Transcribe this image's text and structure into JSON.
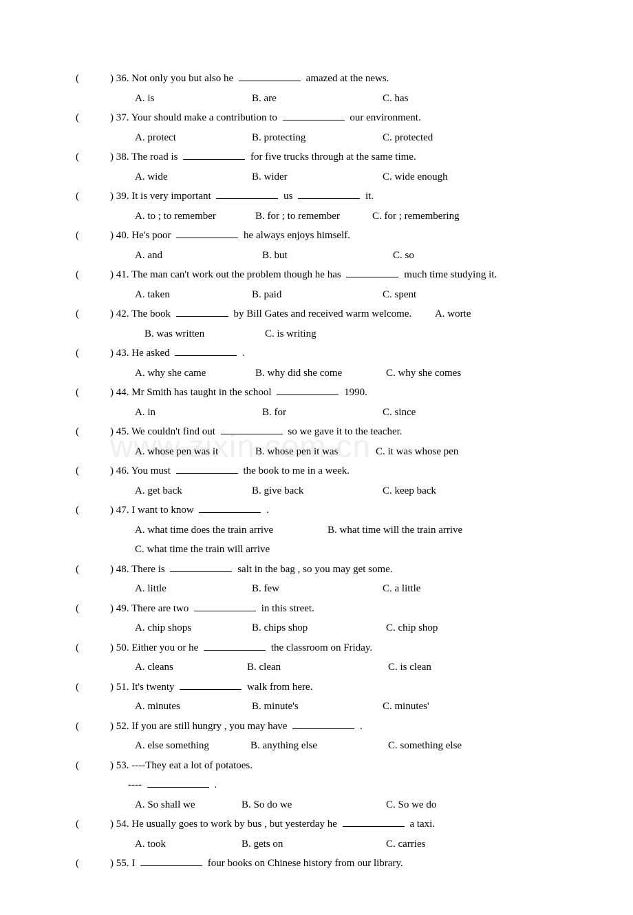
{
  "watermark": "www.zixin.com.cn",
  "questions": [
    {
      "n": "36",
      "q_pre": ") 36. Not only you but also he ",
      "q_post": " amazed at the news.",
      "a": "A. is",
      "b": "B. are",
      "c": "C. has",
      "aw": 170,
      "bw": 190
    },
    {
      "n": "37",
      "q_pre": ") 37. Your should make a contribution to ",
      "q_post": " our environment.",
      "a": "A. protect",
      "b": "B. protecting",
      "c": "C. protected",
      "aw": 170,
      "bw": 190
    },
    {
      "n": "38",
      "q_pre": ") 38. The road is ",
      "q_post": " for five trucks through at the same time.",
      "a": "A. wide",
      "b": "B. wider",
      "c": "C. wide enough",
      "aw": 170,
      "bw": 190
    },
    {
      "n": "39",
      "q_pre": ") 39. It is very important ",
      "q_mid": " us ",
      "q_post": " it.",
      "two_blanks": true,
      "a": "A. to ; to remember",
      "b": "B. for ; to remember",
      "c": "C. for ; remembering",
      "aw": 175,
      "bw": 170
    },
    {
      "n": "40",
      "q_pre": ") 40. He's poor ",
      "q_post": " he always enjoys himself.",
      "a": "A. and",
      "b": "B. but",
      "c": "C. so",
      "aw": 185,
      "bw": 190
    },
    {
      "n": "41",
      "q_pre": ") 41. The man can't work out the problem though he has ",
      "q_post": " much time studying it.",
      "a": "A. taken",
      "b": "B. paid",
      "c": "C. spent",
      "aw": 170,
      "bw": 190,
      "blank_sm": true
    },
    {
      "n": "42",
      "q_pre": ") 42. The book ",
      "q_post": " by Bill Gates and received warm welcome.",
      "a": "A. worte",
      "b": "B. was written",
      "c": "C. is writing",
      "inline_a": true,
      "bw": 175,
      "blank_sm": true
    },
    {
      "n": "43",
      "q_pre": ") 43. He asked ",
      "q_post": " .",
      "a": "A. why she came",
      "b": "B. why did she come",
      "c": "C. why she comes",
      "aw": 175,
      "bw": 190
    },
    {
      "n": "44",
      "q_pre": ") 44. Mr Smith has taught in the school ",
      "q_post": " 1990.",
      "a": "A. in",
      "b": "B. for",
      "c": "C. since",
      "aw": 185,
      "bw": 175
    },
    {
      "n": "45",
      "q_pre": ") 45. We couldn't find out ",
      "q_post": " so we gave it to the teacher.",
      "a": "A. whose pen was it",
      "b": "B. whose pen it was",
      "c": "C. it was whose pen",
      "aw": 175,
      "bw": 175
    },
    {
      "n": "46",
      "q_pre": ") 46. You must ",
      "q_post": " the book to me in a week.",
      "a": "A. get back",
      "b": "B. give back",
      "c": "C. keep back",
      "aw": 170,
      "bw": 190
    },
    {
      "n": "47",
      "q_pre": ") 47. I want to know ",
      "q_post": " .",
      "a": "A. what time does the train arrive",
      "b": "B. what time will the train arrive",
      "c": "C. what time the train will arrive",
      "two_line": true,
      "aw": 280
    },
    {
      "n": "48",
      "q_pre": ") 48. There is ",
      "q_post": " salt in the bag , so you may get some.",
      "a": "A. little",
      "b": "B. few",
      "c": "C. a little",
      "aw": 170,
      "bw": 190
    },
    {
      "n": "49",
      "q_pre": ") 49. There are two ",
      "q_post": " in this street.",
      "a": "A. chip shops",
      "b": "B. chips shop",
      "c": "C. chip shop",
      "aw": 170,
      "bw": 195
    },
    {
      "n": "50",
      "q_pre": ") 50. Either you or he ",
      "q_post": " the classroom on Friday.",
      "a": "A. cleans",
      "b": "B. clean",
      "c": "C. is clean",
      "aw": 163,
      "bw": 205
    },
    {
      "n": "51",
      "q_pre": ") 51. It's twenty ",
      "q_post": " walk from here.",
      "a": "A. minutes",
      "b": "B. minute's",
      "c": "C. minutes'",
      "aw": 170,
      "bw": 190
    },
    {
      "n": "52",
      "q_pre": ") 52. If you are still hungry , you may have ",
      "q_post": " .",
      "a": "A. else something",
      "b": "B. anything else",
      "c": "C. something else",
      "aw": 168,
      "bw": 200
    },
    {
      "n": "53",
      "q_pre": ") 53. ----They eat a lot of potatoes.",
      "dash_line": "---- ",
      "dash_post": " .",
      "a": "A. So shall we",
      "b": "B. So do we",
      "c": "C. So we do",
      "aw": 155,
      "bw": 210
    },
    {
      "n": "54",
      "q_pre": ") 54. He usually goes to work by bus , but yesterday he ",
      "q_post": " a taxi.",
      "a": "A. took",
      "b": "B. gets on",
      "c": "C. carries",
      "aw": 155,
      "bw": 210
    },
    {
      "n": "55",
      "q_pre": ") 55. I ",
      "q_post": " four books on Chinese history from our library.",
      "no_opts": true
    }
  ]
}
